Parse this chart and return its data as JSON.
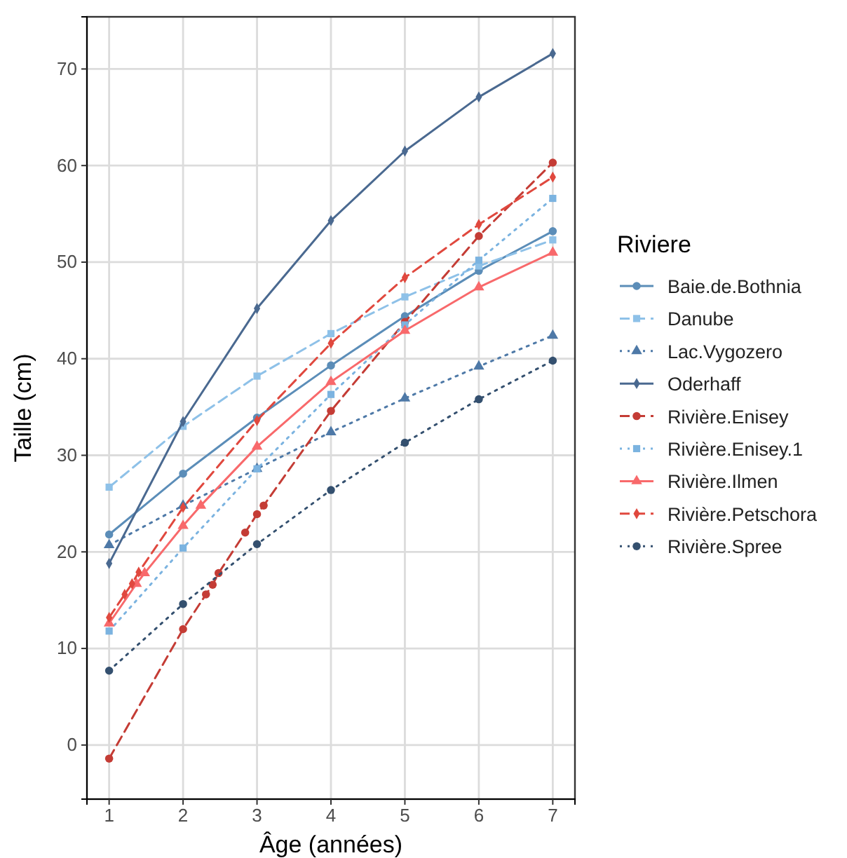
{
  "chart_data": {
    "type": "line",
    "xlabel": "Âge (années)",
    "ylabel": "Taille (cm)",
    "legend_title": "Riviere",
    "legend": "right",
    "grid": true,
    "xlim": [
      0.7,
      7.3
    ],
    "ylim": [
      -5.6,
      75.4
    ],
    "xticks": [
      1,
      2,
      3,
      4,
      5,
      6,
      7
    ],
    "yticks": [
      0,
      10,
      20,
      30,
      40,
      50,
      60,
      70
    ],
    "series": [
      {
        "name": "Baie.de.Bothnia",
        "color": "#5b8db8",
        "marker": "circle",
        "line_style": "solid",
        "x": [
          1,
          2,
          3,
          4,
          5,
          6,
          7
        ],
        "values": [
          21.8,
          28.1,
          33.9,
          39.3,
          44.4,
          49.1,
          53.2
        ]
      },
      {
        "name": "Danube",
        "color": "#8ec1e8",
        "marker": "square",
        "line_style": "dashed",
        "x": [
          1,
          2,
          3,
          4,
          5,
          6,
          7
        ],
        "values": [
          26.7,
          33.0,
          38.2,
          42.6,
          46.4,
          49.6,
          52.3
        ]
      },
      {
        "name": "Lac.Vygozero",
        "color": "#4e79a7",
        "marker": "triangle",
        "line_style": "dotted",
        "x": [
          1,
          2,
          3,
          4,
          5,
          6,
          7
        ],
        "values": [
          20.7,
          24.8,
          28.6,
          32.4,
          35.9,
          39.2,
          42.4
        ]
      },
      {
        "name": "Oderhaff",
        "color": "#4a6990",
        "marker": "diamond",
        "line_style": "solid",
        "x": [
          1,
          2,
          3,
          4,
          5,
          6,
          7
        ],
        "values": [
          18.8,
          33.5,
          45.2,
          54.3,
          61.5,
          67.1,
          71.6
        ]
      },
      {
        "name": "Rivière.Enisey",
        "color": "#c43c35",
        "marker": "circle",
        "line_style": "dashed",
        "x": [
          1,
          2,
          2.31,
          2.4,
          2.48,
          2.84,
          3,
          3.09,
          4,
          5,
          6,
          7
        ],
        "values": [
          -1.4,
          12.0,
          15.6,
          16.6,
          17.8,
          22.0,
          23.9,
          24.8,
          34.6,
          43.8,
          52.7,
          60.3
        ]
      },
      {
        "name": "Rivière.Enisey.1",
        "color": "#7bb3e0",
        "marker": "square",
        "line_style": "dotted",
        "x": [
          1,
          2,
          3,
          4,
          5,
          6,
          7
        ],
        "values": [
          11.8,
          20.4,
          28.6,
          36.3,
          43.5,
          50.2,
          56.6
        ]
      },
      {
        "name": "Rivière.Ilmen",
        "color": "#f8696b",
        "marker": "triangle",
        "line_style": "solid",
        "x": [
          1,
          1.37,
          1.48,
          2,
          2.24,
          3,
          4,
          5,
          6,
          7
        ],
        "values": [
          12.6,
          16.7,
          17.8,
          22.7,
          24.8,
          30.9,
          37.6,
          42.9,
          47.4,
          51.0
        ]
      },
      {
        "name": "Rivière.Petschora",
        "color": "#e0483e",
        "marker": "diamond",
        "line_style": "dashed",
        "x": [
          1,
          1.21,
          1.31,
          1.4,
          2,
          3,
          4,
          5,
          6,
          7
        ],
        "values": [
          13.2,
          15.6,
          16.7,
          17.9,
          24.6,
          33.6,
          41.6,
          48.4,
          53.9,
          58.8
        ]
      },
      {
        "name": "Rivière.Spree",
        "color": "#34506f",
        "marker": "circle",
        "line_style": "dotted",
        "x": [
          1,
          2,
          3,
          4,
          5,
          6,
          7
        ],
        "values": [
          7.7,
          14.6,
          20.8,
          26.4,
          31.3,
          35.8,
          39.8
        ]
      }
    ]
  }
}
